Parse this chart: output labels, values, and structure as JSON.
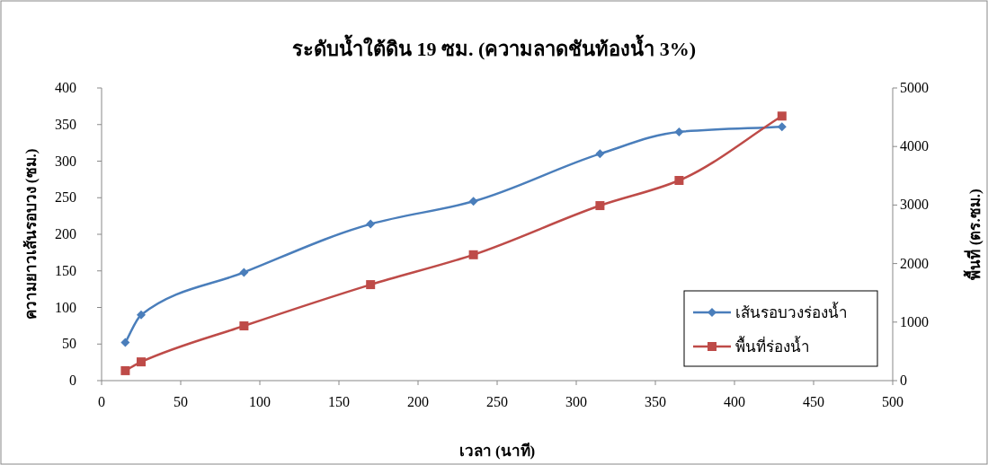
{
  "chart_data": {
    "type": "line",
    "title": "ระดับน้ำใต้ดิน 19 ซม. (ความลาดชันท้องน้ำ 3%)",
    "xlabel": "เวลา (นาที)",
    "ylabel": "ความยาวเส้นรอบวง (ซม.)",
    "y2label": "พื้นที่ (ตร.ซม.)",
    "xlim": [
      0,
      500
    ],
    "xticks": [
      0,
      50,
      100,
      150,
      200,
      250,
      300,
      350,
      400,
      450,
      500
    ],
    "ylim": [
      0,
      400
    ],
    "yticks": [
      0,
      50,
      100,
      150,
      200,
      250,
      300,
      350,
      400
    ],
    "y2lim": [
      0,
      5000
    ],
    "y2ticks": [
      0,
      1000,
      2000,
      3000,
      4000,
      5000
    ],
    "grid": false,
    "legend": "bottom right",
    "series": [
      {
        "name": "เส้นรอบวงร่องน้ำ",
        "color": "#4a7ebb",
        "marker": "diamond",
        "x": [
          15,
          25,
          90,
          170,
          235,
          315,
          365,
          430
        ],
        "values": [
          52,
          90,
          148,
          214,
          245,
          310,
          340,
          347
        ]
      },
      {
        "name": "พื้นที่ร่องน้ำ",
        "color": "#be4b48",
        "marker": "square",
        "axis": "y2",
        "x": [
          15,
          25,
          90,
          170,
          235,
          315,
          365,
          430
        ],
        "values": [
          170,
          320,
          935,
          1640,
          2150,
          2990,
          3420,
          4520
        ]
      }
    ]
  }
}
